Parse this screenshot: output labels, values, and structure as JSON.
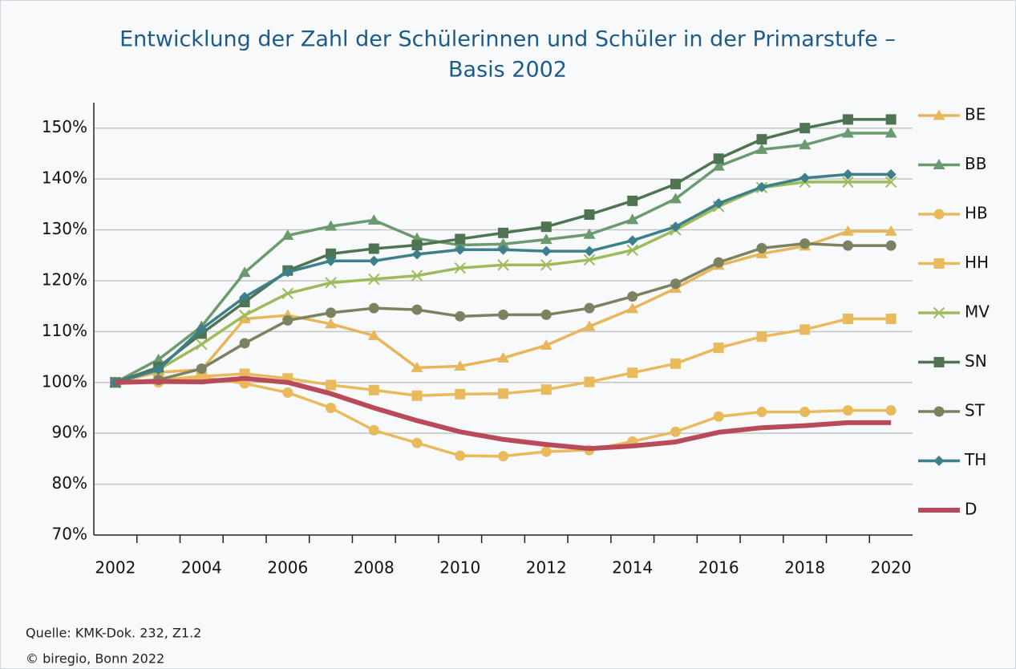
{
  "chart_data": {
    "type": "line",
    "title": [
      "Entwicklung der Zahl der Schülerinnen und Schüler in der Primarstufe –",
      "Basis 2002"
    ],
    "x": [
      2002,
      2003,
      2004,
      2005,
      2006,
      2007,
      2008,
      2009,
      2010,
      2011,
      2012,
      2013,
      2014,
      2015,
      2016,
      2017,
      2018,
      2019,
      2020
    ],
    "xlim": [
      2001.5,
      2020.5
    ],
    "xticks": [
      2002,
      2004,
      2006,
      2008,
      2010,
      2012,
      2014,
      2016,
      2018,
      2020
    ],
    "ylim": [
      70,
      155
    ],
    "yticks": [
      {
        "value": 70,
        "label": "70%"
      },
      {
        "value": 80,
        "label": "80%"
      },
      {
        "value": 90,
        "label": "90%"
      },
      {
        "value": 100,
        "label": "100%"
      },
      {
        "value": 110,
        "label": "110%"
      },
      {
        "value": 120,
        "label": "120%"
      },
      {
        "value": 130,
        "label": "130%"
      },
      {
        "value": 140,
        "label": "140%"
      },
      {
        "value": 150,
        "label": "150%"
      }
    ],
    "grid": true,
    "legend": "right",
    "series": [
      {
        "name": "BE",
        "color": "#e8b65a",
        "marker": "triangle",
        "values": [
          100,
          102,
          102.5,
          112.5,
          113.2,
          111.5,
          109.2,
          102.9,
          103.2,
          104.8,
          107.3,
          111,
          114.5,
          118.5,
          123,
          125.3,
          126.8,
          129.7,
          129.7
        ]
      },
      {
        "name": "BB",
        "color": "#6b9a6e",
        "marker": "triangle",
        "values": [
          100,
          104.5,
          111,
          121.6,
          128.9,
          130.7,
          131.9,
          128.3,
          127,
          127.2,
          128.1,
          129.1,
          132,
          136.1,
          142.5,
          145.8,
          146.7,
          149,
          149
        ]
      },
      {
        "name": "HB",
        "color": "#e9ba5c",
        "marker": "circle",
        "values": [
          100,
          100,
          101,
          99.8,
          98,
          95,
          90.6,
          88.1,
          85.6,
          85.5,
          86.4,
          86.7,
          88.4,
          90.3,
          93.3,
          94.2,
          94.2,
          94.5,
          94.5
        ]
      },
      {
        "name": "HH",
        "color": "#e9ba5c",
        "marker": "square",
        "values": [
          100,
          100.5,
          101.2,
          101.7,
          100.8,
          99.5,
          98.5,
          97.4,
          97.7,
          97.8,
          98.6,
          100.1,
          101.9,
          103.7,
          106.8,
          109,
          110.4,
          112.5,
          112.5
        ]
      },
      {
        "name": "MV",
        "color": "#9dbb5a",
        "marker": "x",
        "values": [
          100,
          102.5,
          107.5,
          113.2,
          117.5,
          119.6,
          120.3,
          121,
          122.5,
          123.1,
          123.1,
          124.1,
          126,
          130,
          134.6,
          138.3,
          139.4,
          139.4,
          139.4
        ]
      },
      {
        "name": "SN",
        "color": "#4f7451",
        "marker": "square",
        "values": [
          100,
          103,
          109.6,
          115.8,
          122,
          125.3,
          126.3,
          127,
          128.2,
          129.4,
          130.6,
          133,
          135.7,
          139,
          144,
          147.8,
          150,
          151.7,
          151.7
        ]
      },
      {
        "name": "ST",
        "color": "#7a8260",
        "marker": "circle",
        "values": [
          100,
          100.5,
          102.7,
          107.7,
          112.2,
          113.7,
          114.6,
          114.3,
          113,
          113.3,
          113.3,
          114.6,
          116.9,
          119.4,
          123.6,
          126.4,
          127.3,
          126.9,
          126.9
        ]
      },
      {
        "name": "TH",
        "color": "#3d7f8a",
        "marker": "diamond",
        "values": [
          100,
          102.5,
          110.5,
          116.8,
          121.7,
          123.9,
          123.9,
          125.2,
          126.1,
          126.1,
          125.8,
          125.8,
          127.9,
          130.6,
          135.2,
          138.4,
          140.2,
          140.9,
          140.9
        ]
      },
      {
        "name": "D",
        "color": "#b84a5a",
        "marker": "none",
        "values": [
          100,
          100.2,
          100.1,
          100.8,
          100,
          97.8,
          95,
          92.5,
          90.3,
          88.8,
          87.8,
          87,
          87.5,
          88.3,
          90.2,
          91.1,
          91.5,
          92.1,
          92.1
        ]
      }
    ],
    "source": "Quelle: KMK-Dok. 232, Z1.2",
    "copyright": "© biregio, Bonn 2022"
  }
}
